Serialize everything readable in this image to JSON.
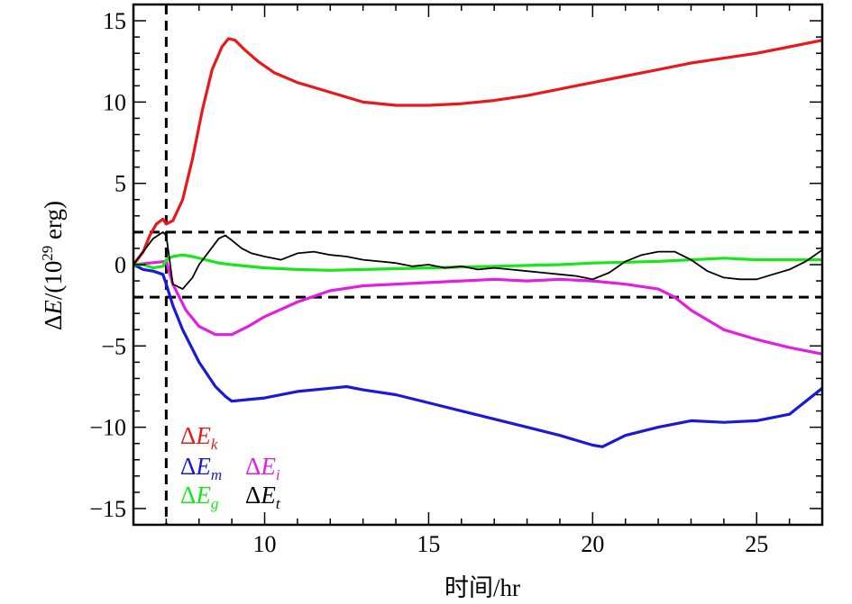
{
  "chart_data": {
    "type": "line",
    "xlabel": "时间/hr",
    "ylabel": {
      "prefix": "Δ",
      "var": "E",
      "mid": "/(10",
      "exp": "29",
      "suffix": " erg)"
    },
    "xlim": [
      6,
      27
    ],
    "ylim": [
      -16,
      16
    ],
    "xticks": [
      10,
      15,
      20,
      25
    ],
    "yticks": [
      -15,
      -10,
      -5,
      0,
      5,
      10,
      15
    ],
    "xtick_labels": [
      "10",
      "15",
      "20",
      "25"
    ],
    "ytick_labels": [
      "−15",
      "−10",
      "−5",
      "0",
      "5",
      "10",
      "15"
    ],
    "reference_lines": {
      "vertical_x": 7,
      "horizontal_y": [
        2,
        -2
      ],
      "style": "dashed"
    },
    "grid": false,
    "legend": {
      "placement": "bottom-left",
      "entries": [
        {
          "series": "ek",
          "delta": "Δ",
          "var": "E",
          "sub": "k",
          "color": "#e8191a"
        },
        {
          "series": "em",
          "delta": "Δ",
          "var": "E",
          "sub": "m",
          "color": "#1a1ad6"
        },
        {
          "series": "ei",
          "delta": "Δ",
          "var": "E",
          "sub": "i",
          "color": "#e31ee3"
        },
        {
          "series": "eg",
          "delta": "Δ",
          "var": "E",
          "sub": "g",
          "color": "#19e619"
        },
        {
          "series": "et",
          "delta": "Δ",
          "var": "E",
          "sub": "t",
          "color": "#000000"
        }
      ]
    },
    "series": [
      {
        "key": "ek",
        "color": "#e8191a",
        "width": 3.2,
        "x": [
          6.0,
          6.3,
          6.5,
          6.7,
          6.9,
          7.0,
          7.2,
          7.5,
          7.8,
          8.1,
          8.4,
          8.7,
          8.9,
          9.1,
          9.4,
          9.8,
          10.3,
          11,
          12,
          13,
          14,
          15,
          16,
          17,
          18,
          19,
          20,
          21,
          22,
          23,
          24,
          25,
          26,
          27
        ],
        "y": [
          0,
          0.8,
          1.8,
          2.5,
          2.8,
          2.5,
          2.7,
          4,
          6.5,
          9.5,
          12,
          13.4,
          13.9,
          13.8,
          13.2,
          12.5,
          11.8,
          11.2,
          10.6,
          10,
          9.8,
          9.8,
          9.9,
          10.1,
          10.4,
          10.8,
          11.2,
          11.6,
          12,
          12.4,
          12.7,
          13,
          13.4,
          13.8
        ]
      },
      {
        "key": "em",
        "color": "#1a1ad6",
        "width": 3.2,
        "x": [
          6.0,
          6.3,
          6.6,
          6.9,
          7.0,
          7.2,
          7.5,
          8.0,
          8.5,
          8.8,
          9.0,
          9.5,
          10,
          11,
          12,
          12.5,
          13,
          14,
          15,
          16,
          17,
          18,
          19,
          20,
          20.3,
          21,
          22,
          23,
          24,
          25,
          26,
          27
        ],
        "y": [
          0,
          -0.3,
          -0.4,
          -0.6,
          -1.2,
          -2.5,
          -4,
          -6,
          -7.5,
          -8.1,
          -8.4,
          -8.3,
          -8.2,
          -7.8,
          -7.6,
          -7.5,
          -7.7,
          -8,
          -8.5,
          -9,
          -9.5,
          -10,
          -10.5,
          -11.1,
          -11.2,
          -10.5,
          -10,
          -9.6,
          -9.7,
          -9.6,
          -9.2,
          -7.6
        ]
      },
      {
        "key": "ei",
        "color": "#e31ee3",
        "width": 3.2,
        "x": [
          6.0,
          6.5,
          7.0,
          7.2,
          7.6,
          8.0,
          8.5,
          9.0,
          9.5,
          10,
          11,
          12,
          13,
          14,
          15,
          16,
          17,
          18,
          19,
          20,
          21,
          22,
          22.5,
          23,
          24,
          25,
          26,
          27
        ],
        "y": [
          0,
          0.1,
          0.2,
          -1.2,
          -2.8,
          -3.8,
          -4.3,
          -4.3,
          -3.8,
          -3.2,
          -2.3,
          -1.6,
          -1.3,
          -1.2,
          -1.1,
          -1,
          -0.9,
          -1,
          -0.9,
          -1,
          -1.2,
          -1.5,
          -2,
          -2.8,
          -4,
          -4.6,
          -5.1,
          -5.5
        ]
      },
      {
        "key": "eg",
        "color": "#19e619",
        "width": 3.2,
        "x": [
          6.0,
          6.3,
          6.6,
          6.9,
          7.0,
          7.2,
          7.5,
          7.8,
          8.2,
          8.6,
          9,
          10,
          11,
          12,
          13,
          14,
          15,
          16,
          17,
          18,
          19,
          20,
          21,
          22,
          23,
          24,
          25,
          26,
          27
        ],
        "y": [
          0,
          0,
          -0.2,
          -0.1,
          0.3,
          0.5,
          0.6,
          0.5,
          0.3,
          0.1,
          0,
          -0.2,
          -0.3,
          -0.35,
          -0.3,
          -0.25,
          -0.2,
          -0.15,
          -0.1,
          -0.05,
          0,
          0.1,
          0.15,
          0.2,
          0.3,
          0.4,
          0.3,
          0.3,
          0.3
        ]
      },
      {
        "key": "et",
        "color": "#000000",
        "width": 1.8,
        "x": [
          6.0,
          6.3,
          6.6,
          6.9,
          7.0,
          7.2,
          7.5,
          7.8,
          8.0,
          8.3,
          8.6,
          8.8,
          9.0,
          9.3,
          9.6,
          10,
          10.5,
          11,
          11.5,
          12,
          12.5,
          13,
          13.5,
          14,
          14.5,
          15,
          15.5,
          16,
          16.5,
          17,
          17.5,
          18,
          18.5,
          19,
          19.5,
          20,
          20.5,
          21,
          21.5,
          22,
          22.5,
          23,
          23.5,
          24,
          24.5,
          25,
          25.5,
          26,
          26.5,
          27
        ],
        "y": [
          0,
          0.8,
          1.6,
          2.0,
          1.8,
          -1.2,
          -1.5,
          -0.8,
          0,
          0.8,
          1.6,
          1.8,
          1.5,
          1.0,
          0.7,
          0.5,
          0.3,
          0.7,
          0.8,
          0.6,
          0.5,
          0.3,
          0.2,
          0.1,
          -0.1,
          0,
          -0.2,
          -0.1,
          -0.3,
          -0.2,
          -0.3,
          -0.4,
          -0.5,
          -0.6,
          -0.7,
          -0.9,
          -0.5,
          0.2,
          0.6,
          0.8,
          0.8,
          0.3,
          -0.4,
          -0.8,
          -0.9,
          -0.9,
          -0.6,
          -0.3,
          0.2,
          0.9
        ]
      }
    ]
  }
}
